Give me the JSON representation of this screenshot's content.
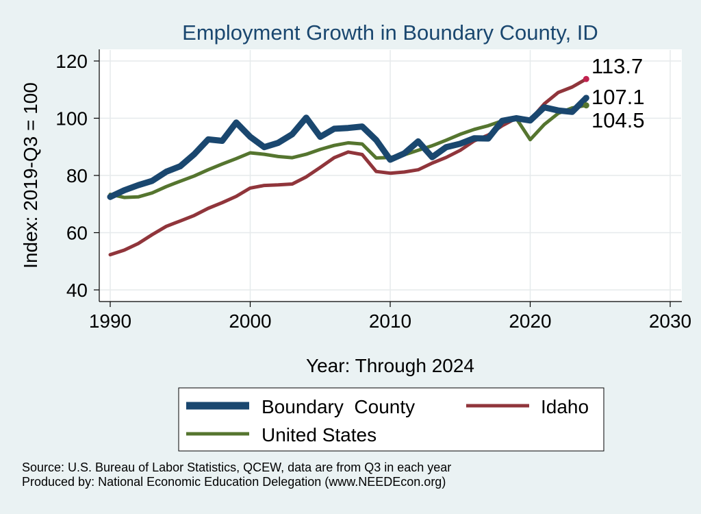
{
  "chart_data": {
    "type": "line",
    "title": "Employment Growth in Boundary County, ID",
    "xlabel": "Year: Through 2024",
    "ylabel": "Index: 2019-Q3 = 100",
    "xlim": [
      1990,
      2030
    ],
    "ylim": [
      40,
      120
    ],
    "x_ticks": [
      "1990",
      "2000",
      "2010",
      "2020",
      "2030"
    ],
    "y_ticks": [
      "40",
      "60",
      "80",
      "100",
      "120"
    ],
    "grid": true,
    "legend_position": "bottom",
    "x": [
      1990,
      1991,
      1992,
      1993,
      1994,
      1995,
      1996,
      1997,
      1998,
      1999,
      2000,
      2001,
      2002,
      2003,
      2004,
      2005,
      2006,
      2007,
      2008,
      2009,
      2010,
      2011,
      2012,
      2013,
      2014,
      2015,
      2016,
      2017,
      2018,
      2019,
      2020,
      2021,
      2022,
      2023,
      2024
    ],
    "series": [
      {
        "name": "Boundary  County",
        "color": "#1a476f",
        "values": [
          72.5,
          74.8,
          76.6,
          78.1,
          81.3,
          83.2,
          87.4,
          92.6,
          92.1,
          98.5,
          93.5,
          89.9,
          91.4,
          94.4,
          100.2,
          93.5,
          96.3,
          96.6,
          97.1,
          92.4,
          85.5,
          87.7,
          91.9,
          86.4,
          89.9,
          91.1,
          93.0,
          92.9,
          99.1,
          100.0,
          99.2,
          103.8,
          102.7,
          102.2,
          107.1
        ]
      },
      {
        "name": "Idaho",
        "color": "#90353b",
        "values": [
          52.3,
          53.9,
          56.2,
          59.3,
          62.2,
          64.1,
          66.0,
          68.5,
          70.5,
          72.7,
          75.6,
          76.5,
          76.7,
          77.0,
          79.5,
          82.8,
          86.2,
          88.2,
          87.3,
          81.4,
          80.8,
          81.2,
          82.0,
          84.3,
          86.3,
          88.8,
          92.1,
          94.1,
          97.4,
          100.0,
          99.4,
          105.0,
          109.0,
          110.9,
          113.7
        ]
      },
      {
        "name": "United States",
        "color": "#55752f",
        "values": [
          73.4,
          72.3,
          72.5,
          73.9,
          76.1,
          78.0,
          79.8,
          82.0,
          84.0,
          85.9,
          87.9,
          87.4,
          86.6,
          86.2,
          87.4,
          89.1,
          90.5,
          91.4,
          91.0,
          86.1,
          86.3,
          87.2,
          88.8,
          90.4,
          92.3,
          94.4,
          96.1,
          97.4,
          99.1,
          100.0,
          92.5,
          97.8,
          101.7,
          103.6,
          104.5
        ]
      }
    ],
    "end_labels": [
      "113.7",
      "107.1",
      "104.5"
    ]
  },
  "source": "Source: U.S. Bureau of Labor Statistics, QCEW, data are from Q3 in each year",
  "producer": "Produced by: National Economic Education Delegation (www.NEEDEcon.org)"
}
